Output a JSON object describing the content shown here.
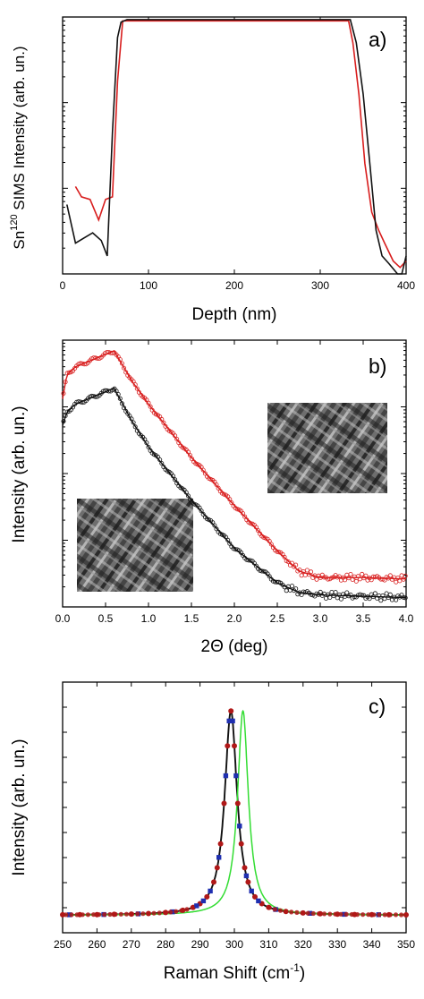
{
  "colors": {
    "red": "#d81e1e",
    "black": "#111111",
    "green": "#33dd33",
    "blue": "#1f2fb0",
    "darkred": "#b01818"
  },
  "chart_data": [
    {
      "type": "line",
      "panel_label": "a)",
      "ylabel_main": "Sn",
      "ylabel_sup": "120",
      "ylabel_rest": " SIMS Intensity (arb. un.)",
      "xlabel": "Depth (nm)",
      "xlim": [
        0,
        400
      ],
      "ylim": [
        0,
        1
      ],
      "yscale": "log",
      "xticks": [
        "0",
        "100",
        "200",
        "300",
        "400"
      ],
      "series": [
        {
          "color": "red",
          "x": [
            15,
            22,
            32,
            42,
            50,
            58,
            64,
            70,
            80,
            100,
            150,
            200,
            250,
            300,
            320,
            333,
            338,
            345,
            352,
            360,
            368,
            375,
            385,
            393,
            400
          ],
          "y": [
            0.34,
            0.3,
            0.29,
            0.21,
            0.29,
            0.3,
            0.75,
            0.985,
            0.985,
            0.985,
            0.985,
            0.985,
            0.985,
            0.985,
            0.985,
            0.985,
            0.9,
            0.7,
            0.43,
            0.24,
            0.17,
            0.12,
            0.05,
            0.025,
            0.05
          ]
        },
        {
          "color": "black",
          "x": [
            5,
            15,
            25,
            35,
            45,
            52,
            58,
            64,
            68,
            75,
            100,
            150,
            200,
            250,
            300,
            335,
            342,
            350,
            358,
            365,
            372,
            380,
            390,
            395,
            400
          ],
          "y": [
            0.27,
            0.12,
            0.14,
            0.16,
            0.13,
            0.07,
            0.55,
            0.92,
            0.98,
            0.99,
            0.99,
            0.99,
            0.99,
            0.99,
            0.99,
            0.99,
            0.9,
            0.7,
            0.42,
            0.17,
            0.07,
            0.04,
            0.0,
            0.0,
            0.07
          ]
        }
      ]
    },
    {
      "type": "scatter",
      "panel_label": "b)",
      "ylabel": "Intensity (arb. un.)",
      "xlabel_symbol": "2Θ",
      "xlabel_rest": " (deg)",
      "xlim": [
        0,
        4
      ],
      "ylim": [
        0,
        1
      ],
      "yscale": "log",
      "xticks": [
        "0.0",
        "0.5",
        "1.0",
        "1.5",
        "2.0",
        "2.5",
        "3.0",
        "3.5",
        "4.0"
      ],
      "series": [
        {
          "color": "red",
          "x": [
            0.0,
            0.05,
            0.15,
            0.3,
            0.45,
            0.6,
            0.8,
            1.0,
            1.5,
            2.0,
            2.5,
            2.75,
            3.0,
            3.5,
            4.0
          ],
          "y": [
            0.78,
            0.87,
            0.9,
            0.92,
            0.94,
            0.96,
            0.85,
            0.76,
            0.56,
            0.38,
            0.21,
            0.135,
            0.11,
            0.11,
            0.105
          ]
        },
        {
          "color": "black",
          "x": [
            0.0,
            0.05,
            0.15,
            0.3,
            0.45,
            0.6,
            0.8,
            1.0,
            1.5,
            2.0,
            2.5,
            2.75,
            3.0,
            3.5,
            4.0
          ],
          "y": [
            0.68,
            0.73,
            0.76,
            0.78,
            0.8,
            0.82,
            0.7,
            0.6,
            0.4,
            0.22,
            0.09,
            0.055,
            0.045,
            0.04,
            0.035
          ]
        }
      ]
    },
    {
      "type": "line",
      "panel_label": "c)",
      "ylabel": "Intensity (arb. un.)",
      "xlabel_main": "Raman Shift (cm",
      "xlabel_sup": "-1",
      "xlabel_end": ")",
      "xlim": [
        250,
        350
      ],
      "ylim": [
        0,
        1
      ],
      "xticks": [
        "250",
        "260",
        "270",
        "280",
        "290",
        "300",
        "310",
        "320",
        "330",
        "340",
        "350"
      ],
      "series": [
        {
          "color": "black",
          "model": "lorentz",
          "center": 299,
          "width": 2.2,
          "amplitude": 1.0,
          "baseline": 0.0
        },
        {
          "color": "green",
          "model": "lorentz",
          "center": 302.5,
          "width": 1.9,
          "amplitude": 1.0,
          "baseline": 0.0
        },
        {
          "color": "darkred",
          "marker": "circle",
          "x": [
            250,
            255,
            260,
            265,
            270,
            275,
            280,
            285,
            288,
            290,
            292,
            294,
            295,
            296,
            297,
            298,
            299,
            300,
            301,
            302,
            303,
            304,
            306,
            308,
            310,
            315,
            320,
            325,
            330,
            335,
            340,
            345,
            350
          ]
        },
        {
          "color": "blue",
          "marker": "square",
          "x": [
            252,
            262,
            272,
            282,
            289,
            291,
            293,
            295.5,
            297.5,
            298.5,
            299.5,
            300.5,
            301.5,
            303.5,
            305,
            307,
            312,
            322,
            332,
            342
          ]
        }
      ]
    }
  ]
}
